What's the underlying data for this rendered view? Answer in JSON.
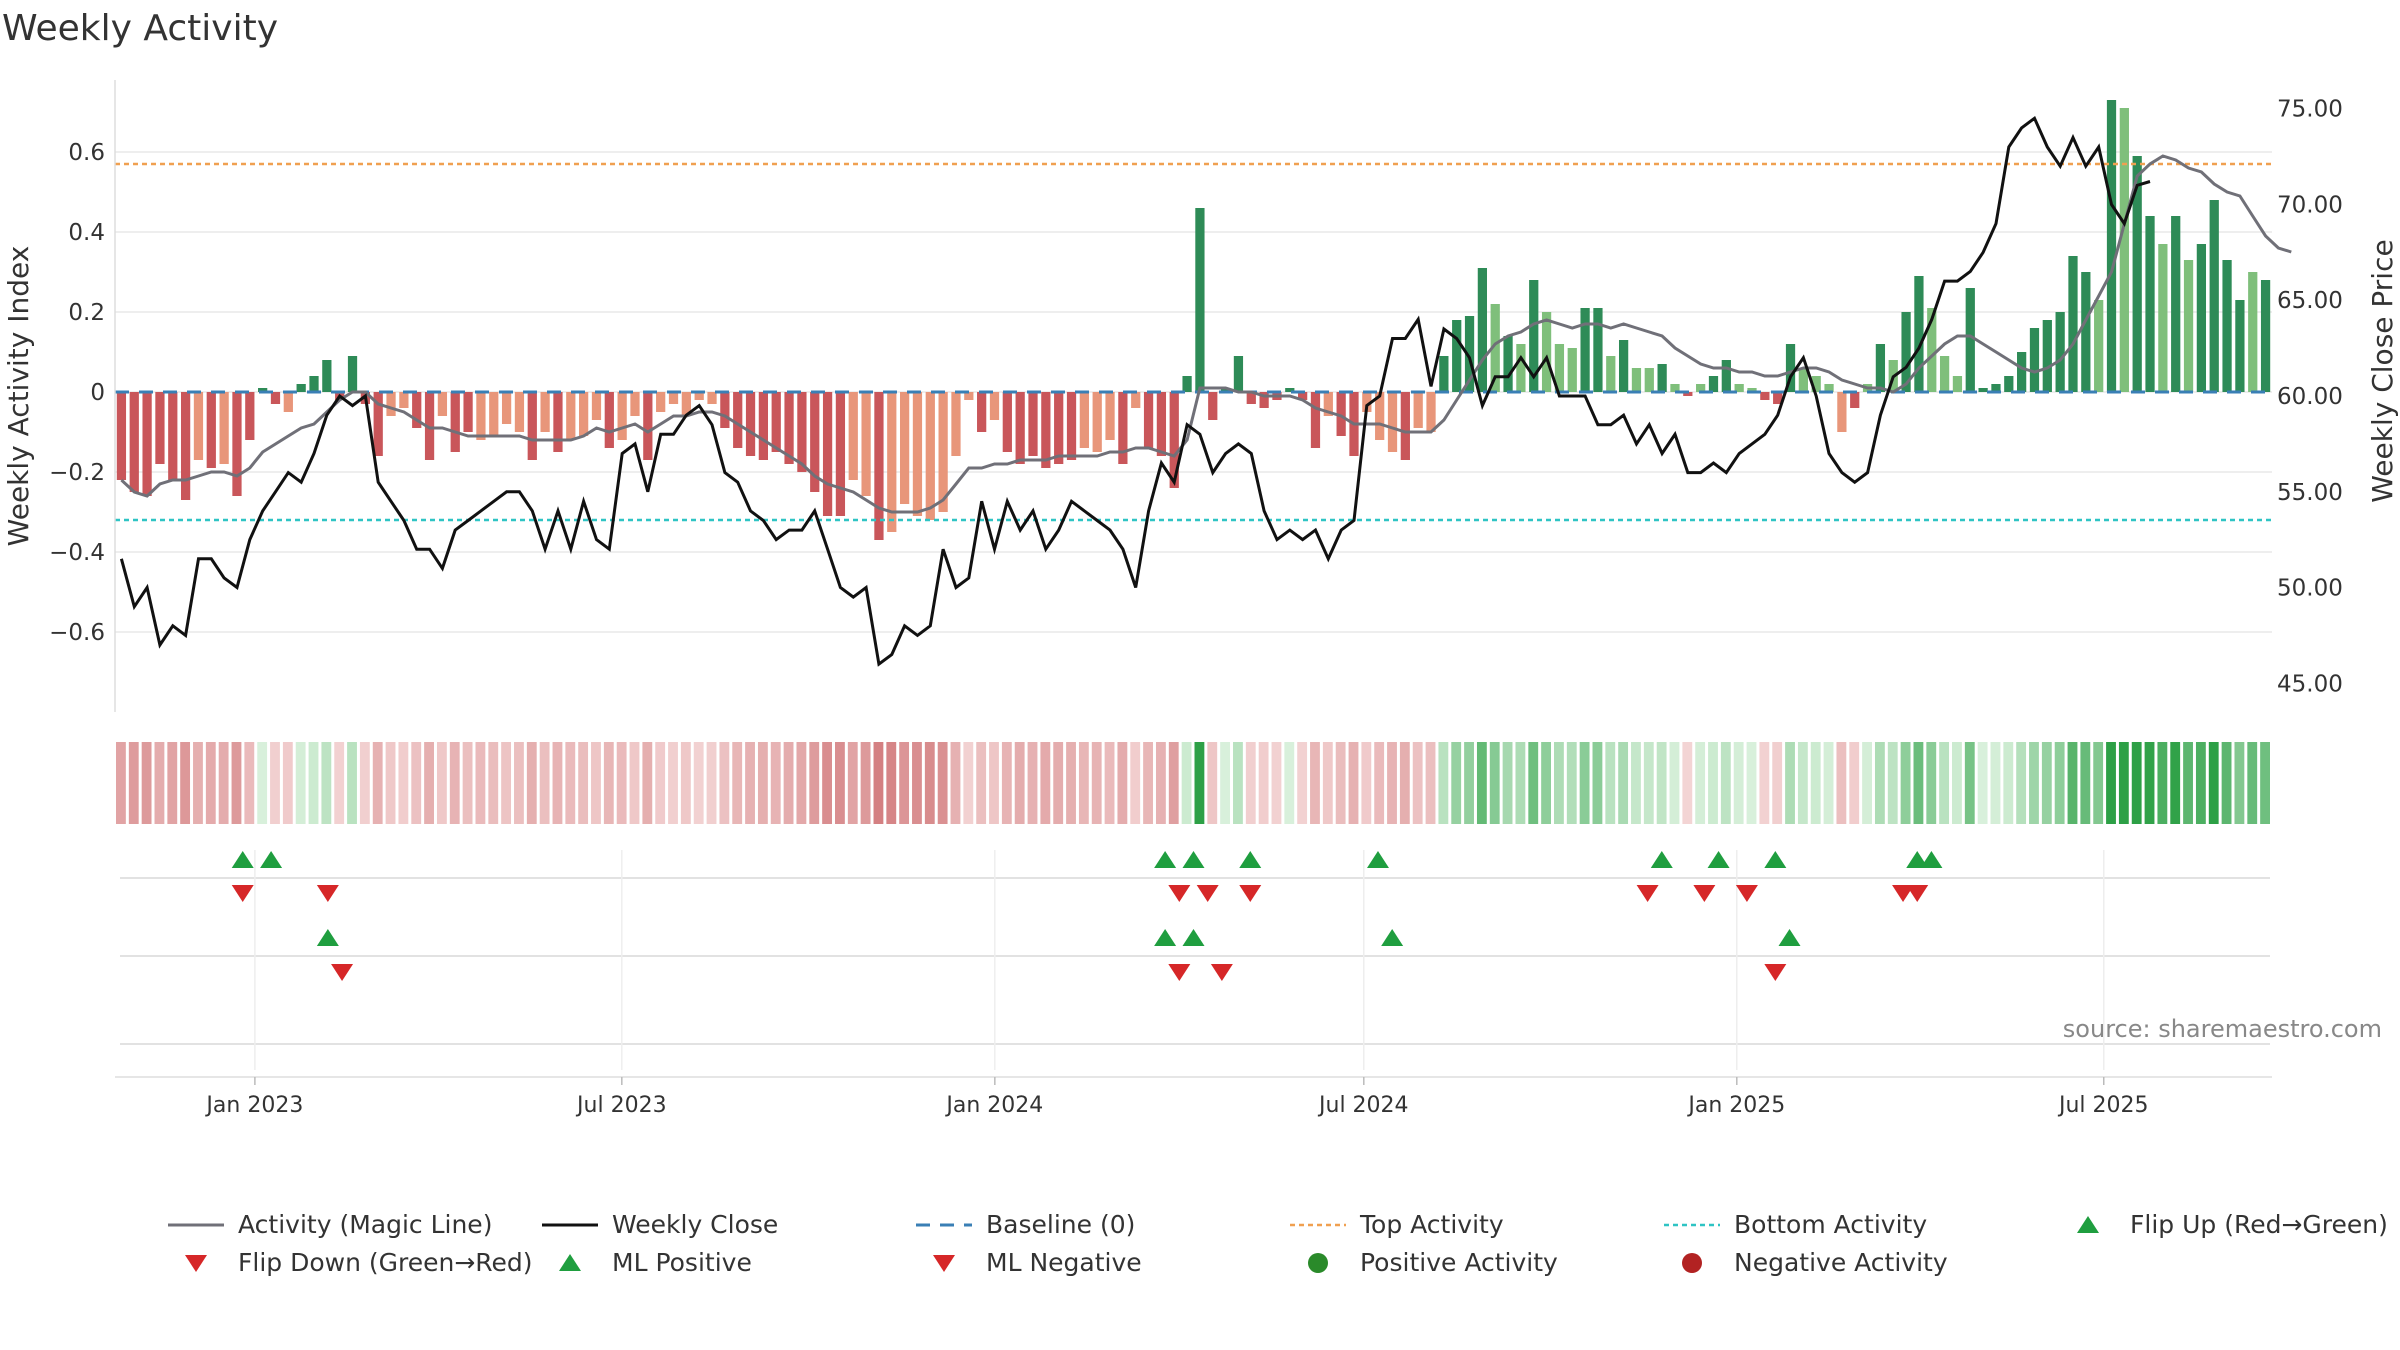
{
  "title": "Weekly Activity",
  "source": "source: sharemaestro.com",
  "colors": {
    "bar_red_dark": "#c9565a",
    "bar_red_light": "#e8967a",
    "bar_green_dark": "#2e8b57",
    "bar_green_light": "#7fbf7b",
    "magic_line": "#707078",
    "weekly_close": "#111111",
    "baseline": "#3a7fb5",
    "top_activity": "#f0a050",
    "bottom_activity": "#2ec4c4",
    "flip_up": "#1f9e3f",
    "flip_down": "#d62728",
    "positive": "#2a8a2a",
    "negative": "#b22222",
    "grid": "#e8e8e8"
  },
  "chart_data": {
    "type": "bar",
    "title": "Weekly Activity",
    "ylabel": "Weekly Activity Index",
    "y2label": "Weekly Close Price",
    "ylim": [
      -0.8,
      0.78
    ],
    "y2lim": [
      43.5,
      76.5
    ],
    "yticks": [
      -0.6,
      -0.4,
      -0.2,
      0,
      0.2,
      0.4,
      0.6
    ],
    "ytick_labels": [
      "−0.6",
      "−0.4",
      "−0.2",
      "0",
      "0.2",
      "0.4",
      "0.6"
    ],
    "y2ticks": [
      45,
      50,
      55,
      60,
      65,
      70,
      75
    ],
    "y2tick_labels": [
      "45.00",
      "50.00",
      "55.00",
      "60.00",
      "65.00",
      "70.00",
      "75.00"
    ],
    "x_start": "2022-10-24",
    "x_end": "2025-09-22",
    "x_ticks": [
      {
        "date": "2023-01-01",
        "label": "Jan 2023"
      },
      {
        "date": "2023-07-01",
        "label": "Jul 2023"
      },
      {
        "date": "2024-01-01",
        "label": "Jan 2024"
      },
      {
        "date": "2024-07-01",
        "label": "Jul 2024"
      },
      {
        "date": "2025-01-01",
        "label": "Jan 2025"
      },
      {
        "date": "2025-07-01",
        "label": "Jul 2025"
      }
    ],
    "top_activity": 0.57,
    "bottom_activity": -0.32,
    "baseline": 0,
    "activity": [
      -0.22,
      -0.25,
      -0.26,
      -0.18,
      -0.22,
      -0.27,
      -0.17,
      -0.19,
      -0.18,
      -0.26,
      -0.12,
      0.01,
      -0.03,
      -0.05,
      0.02,
      0.04,
      0.08,
      -0.02,
      0.09,
      -0.03,
      -0.16,
      -0.06,
      -0.04,
      -0.09,
      -0.17,
      -0.06,
      -0.15,
      -0.1,
      -0.12,
      -0.11,
      -0.08,
      -0.1,
      -0.17,
      -0.1,
      -0.15,
      -0.12,
      -0.11,
      -0.07,
      -0.14,
      -0.12,
      -0.06,
      -0.17,
      -0.05,
      -0.03,
      -0.06,
      -0.02,
      -0.03,
      -0.09,
      -0.14,
      -0.16,
      -0.17,
      -0.15,
      -0.18,
      -0.2,
      -0.25,
      -0.31,
      -0.31,
      -0.22,
      -0.26,
      -0.37,
      -0.35,
      -0.28,
      -0.31,
      -0.32,
      -0.3,
      -0.16,
      -0.02,
      -0.1,
      -0.07,
      -0.15,
      -0.18,
      -0.16,
      -0.19,
      -0.18,
      -0.17,
      -0.14,
      -0.15,
      -0.12,
      -0.18,
      -0.04,
      -0.14,
      -0.16,
      -0.24,
      0.04,
      0.46,
      -0.07,
      0.01,
      0.09,
      -0.03,
      -0.04,
      -0.02,
      0.01,
      -0.02,
      -0.14,
      -0.06,
      -0.11,
      -0.16,
      -0.05,
      -0.12,
      -0.15,
      -0.17,
      -0.09,
      -0.1,
      0.09,
      0.18,
      0.19,
      0.31,
      0.22,
      0.14,
      0.12,
      0.28,
      0.2,
      0.12,
      0.11,
      0.21,
      0.21,
      0.09,
      0.13,
      0.06,
      0.06,
      0.07,
      0.02,
      -0.01,
      0.02,
      0.04,
      0.08,
      0.02,
      0.01,
      -0.02,
      -0.03,
      0.12,
      0.06,
      0.04,
      0.02,
      -0.1,
      -0.04,
      0.02,
      0.12,
      0.08,
      0.2,
      0.29,
      0.21,
      0.09,
      0.04,
      0.26,
      0.01,
      0.02,
      0.04,
      0.1,
      0.16,
      0.18,
      0.2,
      0.34,
      0.3,
      0.23,
      0.73,
      0.71,
      0.59,
      0.44,
      0.37,
      0.44,
      0.33,
      0.37,
      0.48,
      0.33,
      0.23,
      0.3,
      0.28
    ],
    "magic_line": [
      -0.22,
      -0.25,
      -0.26,
      -0.23,
      -0.22,
      -0.22,
      -0.21,
      -0.2,
      -0.2,
      -0.21,
      -0.19,
      -0.15,
      -0.13,
      -0.11,
      -0.09,
      -0.08,
      -0.05,
      -0.02,
      0.0,
      0.0,
      -0.03,
      -0.04,
      -0.05,
      -0.07,
      -0.09,
      -0.09,
      -0.1,
      -0.11,
      -0.11,
      -0.11,
      -0.11,
      -0.11,
      -0.12,
      -0.12,
      -0.12,
      -0.12,
      -0.11,
      -0.09,
      -0.1,
      -0.09,
      -0.08,
      -0.1,
      -0.08,
      -0.06,
      -0.06,
      -0.05,
      -0.05,
      -0.06,
      -0.08,
      -0.1,
      -0.12,
      -0.14,
      -0.16,
      -0.18,
      -0.21,
      -0.23,
      -0.24,
      -0.25,
      -0.27,
      -0.29,
      -0.3,
      -0.3,
      -0.3,
      -0.29,
      -0.27,
      -0.23,
      -0.19,
      -0.19,
      -0.18,
      -0.18,
      -0.17,
      -0.17,
      -0.17,
      -0.16,
      -0.16,
      -0.16,
      -0.16,
      -0.15,
      -0.15,
      -0.14,
      -0.14,
      -0.15,
      -0.16,
      -0.12,
      0.01,
      0.01,
      0.01,
      0.0,
      0.0,
      -0.01,
      -0.01,
      -0.01,
      -0.02,
      -0.04,
      -0.05,
      -0.06,
      -0.08,
      -0.08,
      -0.08,
      -0.09,
      -0.1,
      -0.1,
      -0.1,
      -0.07,
      -0.02,
      0.03,
      0.08,
      0.12,
      0.14,
      0.15,
      0.17,
      0.18,
      0.17,
      0.16,
      0.17,
      0.17,
      0.16,
      0.17,
      0.16,
      0.15,
      0.14,
      0.11,
      0.09,
      0.07,
      0.06,
      0.06,
      0.05,
      0.05,
      0.04,
      0.04,
      0.05,
      0.06,
      0.06,
      0.05,
      0.03,
      0.02,
      0.01,
      0.01,
      0.0,
      0.02,
      0.06,
      0.09,
      0.12,
      0.14,
      0.14,
      0.12,
      0.1,
      0.08,
      0.06,
      0.05,
      0.06,
      0.08,
      0.12,
      0.18,
      0.24,
      0.3,
      0.42,
      0.54,
      0.57,
      0.59,
      0.58,
      0.56,
      0.55,
      0.52,
      0.5,
      0.49,
      0.44,
      0.39,
      0.36,
      0.35
    ],
    "weekly_close": [
      51.5,
      49.0,
      50.0,
      47.0,
      48.0,
      47.5,
      51.5,
      51.5,
      50.5,
      50.0,
      52.5,
      54.0,
      55.0,
      56.0,
      55.5,
      57.0,
      59.0,
      60.0,
      59.5,
      60.0,
      55.5,
      54.5,
      53.5,
      52.0,
      52.0,
      51.0,
      53.0,
      53.5,
      54.0,
      54.5,
      55.0,
      55.0,
      54.0,
      52.0,
      54.0,
      52.0,
      54.5,
      52.5,
      52.0,
      57.0,
      57.5,
      55.0,
      58.0,
      58.0,
      59.0,
      59.5,
      58.5,
      56.0,
      55.5,
      54.0,
      53.5,
      52.5,
      53.0,
      53.0,
      54.0,
      52.0,
      50.0,
      49.5,
      50.0,
      46.0,
      46.5,
      48.0,
      47.5,
      48.0,
      52.0,
      50.0,
      50.5,
      54.5,
      52.0,
      54.5,
      53.0,
      54.0,
      52.0,
      53.0,
      54.5,
      54.0,
      53.5,
      53.0,
      52.0,
      50.0,
      54.0,
      56.5,
      55.5,
      58.5,
      58.0,
      56.0,
      57.0,
      57.5,
      57.0,
      54.0,
      52.5,
      53.0,
      52.5,
      53.0,
      51.5,
      53.0,
      53.5,
      59.5,
      60.0,
      63.0,
      63.0,
      64.0,
      60.5,
      63.5,
      63.0,
      62.0,
      59.5,
      61.0,
      61.0,
      62.0,
      61.0,
      62.0,
      60.0,
      60.0,
      60.0,
      58.5,
      58.5,
      59.0,
      57.5,
      58.5,
      57.0,
      58.0,
      56.0,
      56.0,
      56.5,
      56.0,
      57.0,
      57.5,
      58.0,
      59.0,
      61.0,
      62.0,
      60.0,
      57.0,
      56.0,
      55.5,
      56.0,
      59.0,
      61.0,
      61.5,
      62.5,
      64.0,
      66.0,
      66.0,
      66.5,
      67.5,
      69.0,
      73.0,
      74.0,
      74.5,
      73.0,
      72.0,
      73.5,
      72.0,
      73.0,
      70.0,
      69.0,
      71.0,
      71.2
    ],
    "bar_color_index": [
      "rd",
      "rd",
      "rd",
      "rd",
      "rd",
      "rd",
      "rl",
      "rd",
      "rl",
      "rd",
      "rd",
      "gd",
      "rd",
      "rl",
      "gd",
      "gd",
      "gd",
      "rd",
      "gd",
      "rd",
      "rd",
      "rl",
      "rl",
      "rd",
      "rd",
      "rl",
      "rd",
      "rd",
      "rl",
      "rl",
      "rl",
      "rl",
      "rd",
      "rl",
      "rd",
      "rl",
      "rl",
      "rl",
      "rd",
      "rl",
      "rl",
      "rd",
      "rl",
      "rl",
      "rl",
      "rl",
      "rl",
      "rd",
      "rd",
      "rd",
      "rd",
      "rd",
      "rd",
      "rd",
      "rd",
      "rd",
      "rd",
      "rl",
      "rl",
      "rd",
      "rl",
      "rl",
      "rl",
      "rl",
      "rl",
      "rl",
      "rl",
      "rd",
      "rl",
      "rd",
      "rd",
      "rd",
      "rd",
      "rd",
      "rd",
      "rl",
      "rl",
      "rl",
      "rd",
      "rl",
      "rd",
      "rd",
      "rd",
      "gd",
      "gd",
      "rd",
      "gd",
      "gd",
      "rd",
      "rd",
      "rd",
      "gd",
      "rd",
      "rd",
      "rl",
      "rd",
      "rd",
      "rl",
      "rl",
      "rl",
      "rd",
      "rl",
      "rl",
      "gd",
      "gd",
      "gd",
      "gd",
      "gl",
      "gd",
      "gl",
      "gd",
      "gl",
      "gl",
      "gl",
      "gd",
      "gd",
      "gl",
      "gd",
      "gl",
      "gl",
      "gd",
      "gl",
      "rd",
      "gl",
      "gd",
      "gd",
      "gl",
      "gl",
      "rd",
      "rd",
      "gd",
      "gl",
      "gl",
      "gl",
      "rl",
      "rd",
      "gl",
      "gd",
      "gl",
      "gd",
      "gd",
      "gl",
      "gl",
      "gl",
      "gd",
      "gd",
      "gd",
      "gd",
      "gd",
      "gd",
      "gd",
      "gd",
      "gd",
      "gd",
      "gl",
      "gd",
      "gl",
      "gd",
      "gd",
      "gl",
      "gd",
      "gl",
      "gd",
      "gd",
      "gd",
      "gd",
      "gl",
      "gd",
      "gl"
    ],
    "heatmap_label": "",
    "markers": {
      "flip_up": [
        "2022-12-26",
        "2023-01-09",
        "2024-03-25",
        "2024-04-08",
        "2024-05-06",
        "2024-07-08",
        "2024-11-25",
        "2024-12-23",
        "2025-01-20",
        "2025-03-31",
        "2025-04-07"
      ],
      "flip_down": [
        "2022-12-26",
        "2023-02-06",
        "2024-04-01",
        "2024-04-15",
        "2024-05-06",
        "2024-11-18",
        "2024-12-16",
        "2025-01-06",
        "2025-03-24",
        "2025-03-31"
      ],
      "ml_positive": [
        "2023-02-06",
        "2024-03-25",
        "2024-04-08",
        "2024-07-15",
        "2025-01-27"
      ],
      "ml_negative": [
        "2023-02-13",
        "2024-04-01",
        "2024-04-22",
        "2025-01-20"
      ],
      "positive_activity": [],
      "negative_activity": []
    },
    "legend": {
      "placement": "bottom",
      "entries": [
        {
          "key": "magic",
          "label": "Activity (Magic Line)"
        },
        {
          "key": "close",
          "label": "Weekly Close"
        },
        {
          "key": "baseline",
          "label": "Baseline (0)"
        },
        {
          "key": "top",
          "label": "Top Activity"
        },
        {
          "key": "bottom",
          "label": "Bottom Activity"
        },
        {
          "key": "flipup",
          "label": "Flip Up (Red→Green)"
        },
        {
          "key": "flipdown",
          "label": "Flip Down (Green→Red)"
        },
        {
          "key": "mlpos",
          "label": "ML Positive"
        },
        {
          "key": "mlneg",
          "label": "ML Negative"
        },
        {
          "key": "posact",
          "label": "Positive Activity"
        },
        {
          "key": "negact",
          "label": "Negative Activity"
        }
      ]
    }
  }
}
